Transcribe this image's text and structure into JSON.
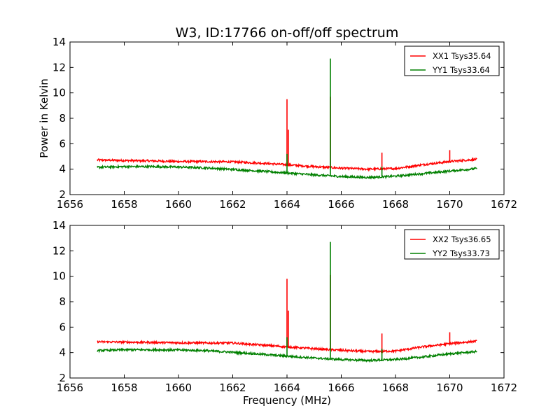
{
  "figure_title": "W3, ID:17766 on-off/off spectrum",
  "colors": {
    "xx": "#ff0000",
    "yy": "#008000"
  },
  "chart_data": [
    {
      "type": "line",
      "title": "W3, ID:17766 on-off/off spectrum",
      "xlabel": "",
      "ylabel": "Power in Kelvin",
      "xlim": [
        1656,
        1672
      ],
      "ylim": [
        2,
        14
      ],
      "xticks": [
        "1656",
        "1658",
        "1660",
        "1662",
        "1664",
        "1666",
        "1668",
        "1670",
        "1672"
      ],
      "yticks": [
        "2",
        "4",
        "6",
        "8",
        "10",
        "12",
        "14"
      ],
      "legend_position": "top-right",
      "series": [
        {
          "name": "XX1 Tsys35.64",
          "color": "#ff0000",
          "baseline": [
            [
              1657,
              4.72
            ],
            [
              1658,
              4.68
            ],
            [
              1659,
              4.65
            ],
            [
              1660,
              4.6
            ],
            [
              1661,
              4.6
            ],
            [
              1662,
              4.57
            ],
            [
              1663,
              4.48
            ],
            [
              1664,
              4.35
            ],
            [
              1665,
              4.2
            ],
            [
              1666,
              4.08
            ],
            [
              1667,
              4.0
            ],
            [
              1668,
              4.05
            ],
            [
              1669,
              4.35
            ],
            [
              1670,
              4.6
            ],
            [
              1671,
              4.78
            ]
          ],
          "spikes": [
            [
              1664.0,
              9.5
            ],
            [
              1664.05,
              7.1
            ],
            [
              1665.6,
              9.7
            ],
            [
              1667.5,
              5.3
            ],
            [
              1670.0,
              5.5
            ]
          ]
        },
        {
          "name": "YY1 Tsys33.64",
          "color": "#008000",
          "baseline": [
            [
              1657,
              4.15
            ],
            [
              1658,
              4.2
            ],
            [
              1659,
              4.2
            ],
            [
              1660,
              4.17
            ],
            [
              1661,
              4.1
            ],
            [
              1662,
              3.98
            ],
            [
              1663,
              3.85
            ],
            [
              1664,
              3.7
            ],
            [
              1665,
              3.55
            ],
            [
              1666,
              3.42
            ],
            [
              1667,
              3.35
            ],
            [
              1668,
              3.45
            ],
            [
              1669,
              3.65
            ],
            [
              1670,
              3.85
            ],
            [
              1671,
              4.05
            ]
          ],
          "spikes": [
            [
              1664.0,
              5.2
            ],
            [
              1665.6,
              12.7
            ],
            [
              1667.5,
              4.2
            ]
          ]
        }
      ]
    },
    {
      "type": "line",
      "title": "",
      "xlabel": "Frequency (MHz)",
      "ylabel": "",
      "xlim": [
        1656,
        1672
      ],
      "ylim": [
        2,
        14
      ],
      "xticks": [
        "1656",
        "1658",
        "1660",
        "1662",
        "1664",
        "1666",
        "1668",
        "1670",
        "1672"
      ],
      "yticks": [
        "2",
        "4",
        "6",
        "8",
        "10",
        "12",
        "14"
      ],
      "legend_position": "top-right",
      "series": [
        {
          "name": "XX2 Tsys36.65",
          "color": "#ff0000",
          "baseline": [
            [
              1657,
              4.85
            ],
            [
              1658,
              4.82
            ],
            [
              1659,
              4.8
            ],
            [
              1660,
              4.77
            ],
            [
              1661,
              4.75
            ],
            [
              1662,
              4.75
            ],
            [
              1663,
              4.6
            ],
            [
              1664,
              4.45
            ],
            [
              1665,
              4.3
            ],
            [
              1666,
              4.18
            ],
            [
              1667,
              4.08
            ],
            [
              1668,
              4.12
            ],
            [
              1669,
              4.45
            ],
            [
              1670,
              4.7
            ],
            [
              1671,
              4.9
            ]
          ],
          "spikes": [
            [
              1664.0,
              9.8
            ],
            [
              1664.05,
              7.3
            ],
            [
              1665.6,
              10.1
            ],
            [
              1667.5,
              5.5
            ],
            [
              1670.0,
              5.6
            ]
          ]
        },
        {
          "name": "YY2 Tsys33.73",
          "color": "#008000",
          "baseline": [
            [
              1657,
              4.15
            ],
            [
              1658,
              4.22
            ],
            [
              1659,
              4.22
            ],
            [
              1660,
              4.2
            ],
            [
              1661,
              4.15
            ],
            [
              1662,
              4.02
            ],
            [
              1663,
              3.88
            ],
            [
              1664,
              3.72
            ],
            [
              1665,
              3.57
            ],
            [
              1666,
              3.45
            ],
            [
              1667,
              3.38
            ],
            [
              1668,
              3.45
            ],
            [
              1669,
              3.65
            ],
            [
              1670,
              3.9
            ],
            [
              1671,
              4.08
            ]
          ],
          "spikes": [
            [
              1664.0,
              5.2
            ],
            [
              1665.6,
              12.7
            ],
            [
              1667.5,
              4.3
            ]
          ]
        }
      ]
    }
  ]
}
